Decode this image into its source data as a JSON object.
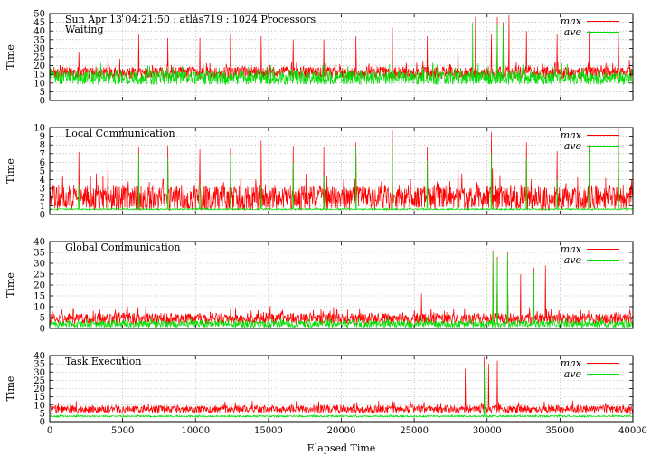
{
  "chart_data": [
    {
      "type": "line",
      "title": "Sun Apr 13 04:21:50 : atlas719 : 1024 Processors",
      "subtitle": "Waiting",
      "ylabel": "Time",
      "xlim": [
        0,
        40000
      ],
      "ylim": [
        0,
        50
      ],
      "yticks": [
        0,
        5,
        10,
        15,
        20,
        25,
        30,
        35,
        40,
        45,
        50
      ],
      "legend_position": "top-right",
      "series": [
        {
          "name": "max",
          "color": "#ff0000",
          "baseline": 16,
          "noise": 2.2,
          "x": [
            2000,
            4000,
            6100,
            8100,
            10300,
            12400,
            14500,
            16700,
            18800,
            21000,
            23500,
            25900,
            28000,
            29200,
            30300,
            30700,
            31100,
            31500,
            32700,
            34800,
            37000,
            39000
          ],
          "values": [
            28,
            30,
            38,
            36,
            36,
            38,
            37,
            35,
            35,
            37,
            42,
            37,
            35,
            48,
            38,
            48,
            45,
            49,
            40,
            38,
            40,
            38
          ]
        },
        {
          "name": "ave",
          "color": "#00dd00",
          "baseline": 13,
          "noise": 2.5,
          "x": [
            29000,
            30700,
            31100
          ],
          "values": [
            45,
            44,
            43
          ]
        }
      ],
      "grid": true
    },
    {
      "type": "line",
      "title": "Local Communication",
      "ylabel": "Time",
      "xlim": [
        0,
        40000
      ],
      "ylim": [
        0,
        10
      ],
      "yticks": [
        0,
        1,
        2,
        3,
        4,
        5,
        6,
        7,
        8,
        9,
        10
      ],
      "legend_position": "top-right",
      "series": [
        {
          "name": "max",
          "color": "#ff0000",
          "baseline": 1.9,
          "noise": 0.9,
          "x": [
            2000,
            4000,
            6100,
            8100,
            10300,
            12400,
            14500,
            16700,
            18800,
            21000,
            23500,
            25900,
            28000,
            30300,
            32700,
            34800,
            37000,
            39000
          ],
          "values": [
            7.2,
            7.5,
            7.8,
            7.9,
            7.5,
            7.6,
            8.5,
            7.9,
            7.8,
            8.3,
            9.7,
            7.8,
            7.8,
            9.5,
            8.3,
            7.3,
            8.0,
            9.9
          ]
        },
        {
          "name": "ave",
          "color": "#00dd00",
          "baseline": 0.6,
          "noise": 0.05,
          "x": [
            2000,
            4000,
            6100,
            8100,
            10300,
            12400,
            14500,
            16700,
            18800,
            21000,
            23500,
            25900,
            28000,
            30300,
            32700,
            34800,
            37000,
            39000
          ],
          "values": [
            3.5,
            3.3,
            7.0,
            6.5,
            3.5,
            7.0,
            3.2,
            6.0,
            4.5,
            7.8,
            8.0,
            6.2,
            3.2,
            7.0,
            6.5,
            4.0,
            7.5,
            8.5
          ]
        }
      ],
      "grid": true
    },
    {
      "type": "line",
      "title": "Global Communication",
      "ylabel": "Time",
      "xlim": [
        0,
        40000
      ],
      "ylim": [
        0,
        40
      ],
      "yticks": [
        0,
        5,
        10,
        15,
        20,
        25,
        30,
        35,
        40
      ],
      "legend_position": "top-right",
      "series": [
        {
          "name": "max",
          "color": "#ff0000",
          "baseline": 4.5,
          "noise": 1.6,
          "x": [
            1600,
            18600,
            25500,
            30400,
            30700,
            31400,
            32300,
            33200,
            34000
          ],
          "values": [
            9,
            9,
            16,
            36,
            33,
            35,
            25,
            28,
            29
          ]
        },
        {
          "name": "ave",
          "color": "#00dd00",
          "baseline": 2.0,
          "noise": 1.0,
          "x": [
            30400,
            30700,
            31400,
            33200
          ],
          "values": [
            35,
            32,
            34,
            26
          ]
        }
      ],
      "grid": true
    },
    {
      "type": "line",
      "title": "Task Execution",
      "ylabel": "Time",
      "xlabel": "Elapsed Time",
      "xlim": [
        0,
        40000
      ],
      "ylim": [
        0,
        40
      ],
      "yticks": [
        0,
        5,
        10,
        15,
        20,
        25,
        30,
        35,
        40
      ],
      "xticks": [
        0,
        5000,
        10000,
        15000,
        20000,
        25000,
        30000,
        35000,
        40000
      ],
      "legend_position": "top-right",
      "series": [
        {
          "name": "max",
          "color": "#ff0000",
          "baseline": 7.5,
          "noise": 1.5,
          "x": [
            28500,
            29800,
            30100,
            30700
          ],
          "values": [
            32,
            39,
            35,
            37
          ]
        },
        {
          "name": "ave",
          "color": "#00dd00",
          "baseline": 3.2,
          "noise": 0.3,
          "x": [
            29800
          ],
          "values": [
            33
          ]
        }
      ],
      "grid": true
    }
  ]
}
